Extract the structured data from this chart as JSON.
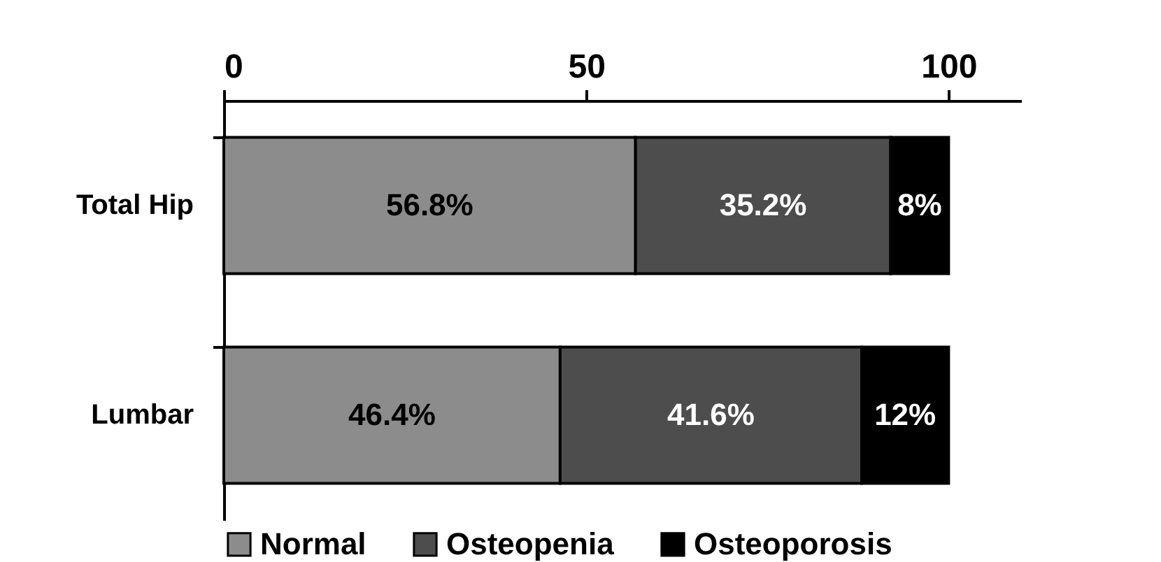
{
  "chart_data": {
    "type": "bar",
    "orientation": "horizontal",
    "stacked": true,
    "categories": [
      "Total Hip",
      "Lumbar"
    ],
    "series": [
      {
        "name": "Normal",
        "color": "#8c8c8c",
        "values": [
          56.8,
          46.4
        ],
        "value_labels": [
          "56.8%",
          "46.4%"
        ]
      },
      {
        "name": "Osteopenia",
        "color": "#4d4d4d",
        "values": [
          35.2,
          41.6
        ],
        "value_labels": [
          "35.2%",
          "41.6%"
        ]
      },
      {
        "name": "Osteoporosis",
        "color": "#000000",
        "values": [
          8,
          12
        ],
        "value_labels": [
          "8%",
          "12%"
        ]
      }
    ],
    "xlim": [
      0,
      110
    ],
    "xticks": [
      0,
      50,
      100
    ],
    "grid": false,
    "legend": "bottom"
  }
}
